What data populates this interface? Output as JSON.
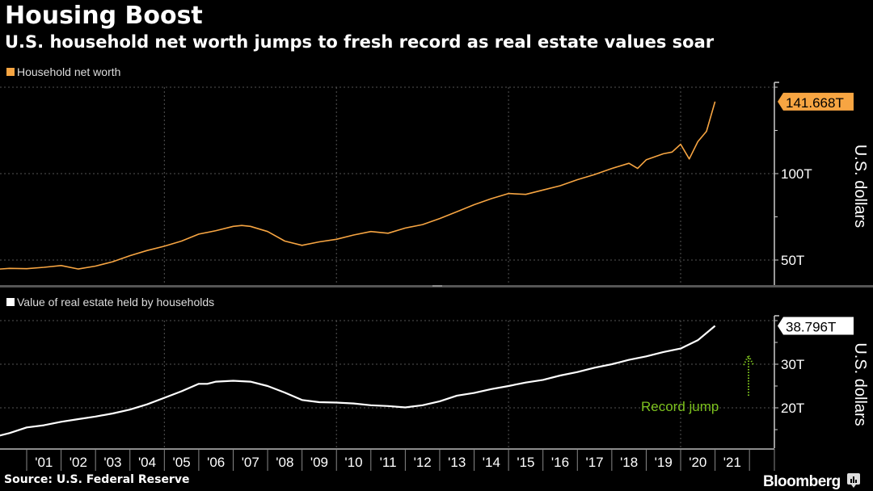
{
  "header": {
    "title": "Housing Boost",
    "subtitle": "U.S. household net worth jumps to fresh record as real estate values soar"
  },
  "footer": {
    "source": "Source: U.S. Federal Reserve",
    "brand": "Bloomberg"
  },
  "colors": {
    "background": "#000000",
    "net_worth": "#f7a542",
    "real_estate": "#ffffff",
    "annotation": "#7cc11e",
    "grid": "#555555"
  },
  "chart_data": [
    {
      "type": "line",
      "legend": "Household net worth",
      "ylabel": "U.S. dollars",
      "ylim": [
        36,
        161
      ],
      "yticks": [
        50,
        100
      ],
      "ytick_labels": [
        "50T",
        "100T"
      ],
      "gridlines": [
        50,
        100,
        150
      ],
      "last_value_label": "141.668T",
      "series": [
        {
          "name": "Household net worth",
          "x": [
            2000.0,
            2000.5,
            2001.0,
            2001.5,
            2002.0,
            2002.5,
            2003.0,
            2003.5,
            2004.0,
            2004.5,
            2005.0,
            2005.5,
            2006.0,
            2006.5,
            2007.0,
            2007.25,
            2007.5,
            2008.0,
            2008.5,
            2009.0,
            2009.5,
            2010.0,
            2010.5,
            2011.0,
            2011.5,
            2012.0,
            2012.5,
            2013.0,
            2013.5,
            2014.0,
            2014.5,
            2015.0,
            2015.5,
            2016.0,
            2016.5,
            2017.0,
            2017.5,
            2018.0,
            2018.5,
            2018.75,
            2019.0,
            2019.5,
            2019.75,
            2020.0,
            2020.25,
            2020.5,
            2020.75,
            2021.0
          ],
          "values": [
            44.5,
            45.2,
            45.0,
            45.8,
            46.8,
            44.8,
            46.5,
            49.0,
            52.5,
            55.5,
            58.0,
            61.0,
            65.0,
            67.0,
            69.5,
            70.0,
            69.5,
            66.5,
            61.0,
            58.5,
            60.5,
            62.0,
            64.5,
            66.5,
            65.5,
            68.5,
            70.5,
            74.0,
            78.0,
            82.0,
            85.5,
            88.5,
            88.0,
            90.5,
            93.0,
            96.5,
            99.5,
            103.0,
            106.0,
            103.0,
            108.0,
            111.5,
            112.5,
            117.0,
            108.5,
            118.5,
            124.5,
            141.668
          ]
        }
      ]
    },
    {
      "type": "line",
      "legend": "Value of real estate held by households",
      "ylabel": "U.S. dollars",
      "ylim": [
        10.4,
        40.5
      ],
      "yticks": [
        20,
        30
      ],
      "ytick_labels": [
        "20T",
        "30T"
      ],
      "gridlines": [
        20,
        30,
        40
      ],
      "last_value_label": "38.796T",
      "annotation": "Record jump",
      "series": [
        {
          "name": "Value of real estate held by households",
          "x": [
            2000.0,
            2000.5,
            2001.0,
            2001.5,
            2002.0,
            2002.5,
            2003.0,
            2003.5,
            2004.0,
            2004.5,
            2005.0,
            2005.5,
            2006.0,
            2006.25,
            2006.5,
            2007.0,
            2007.5,
            2008.0,
            2008.5,
            2009.0,
            2009.5,
            2010.0,
            2010.5,
            2011.0,
            2011.5,
            2012.0,
            2012.5,
            2013.0,
            2013.5,
            2014.0,
            2014.5,
            2015.0,
            2015.5,
            2016.0,
            2016.5,
            2017.0,
            2017.5,
            2018.0,
            2018.5,
            2019.0,
            2019.5,
            2020.0,
            2020.5,
            2021.0
          ],
          "values": [
            13.2,
            14.2,
            15.5,
            16.0,
            16.8,
            17.4,
            18.0,
            18.7,
            19.6,
            20.8,
            22.3,
            23.8,
            25.5,
            25.5,
            26.0,
            26.2,
            26.0,
            25.0,
            23.5,
            21.8,
            21.3,
            21.2,
            21.0,
            20.6,
            20.4,
            20.1,
            20.6,
            21.5,
            22.8,
            23.4,
            24.3,
            25.0,
            25.8,
            26.4,
            27.4,
            28.2,
            29.2,
            30.0,
            31.0,
            31.8,
            32.8,
            33.6,
            35.5,
            38.796
          ]
        }
      ]
    }
  ],
  "x_axis": {
    "range": [
      1999.75,
      2021.55
    ],
    "tick_labels": [
      "'01",
      "'02",
      "'03",
      "'04",
      "'05",
      "'06",
      "'07",
      "'08",
      "'09",
      "'10",
      "'11",
      "'12",
      "'13",
      "'14",
      "'15",
      "'16",
      "'17",
      "'18",
      "'19",
      "'20",
      "'21"
    ],
    "tick_years": [
      2001,
      2002,
      2003,
      2004,
      2005,
      2006,
      2007,
      2008,
      2009,
      2010,
      2011,
      2012,
      2013,
      2014,
      2015,
      2016,
      2017,
      2018,
      2019,
      2020,
      2021
    ],
    "vertical_gridlines": [
      2005,
      2010,
      2015,
      2020
    ]
  }
}
